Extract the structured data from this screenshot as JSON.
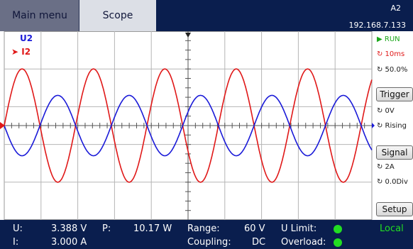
{
  "tabs": {
    "main_menu": "Main menu",
    "scope": "Scope"
  },
  "device": {
    "id": "A2",
    "ip": "192.168.7.133"
  },
  "channels": {
    "voltage": "U2",
    "current": "I2",
    "voltage_color": "#1a1ad8",
    "current_color": "#e01818"
  },
  "side": {
    "run": "▶ RUN",
    "timebase": "↻ 10ms",
    "position": "↻ 50.0%",
    "trigger_button": "Trigger",
    "trigger_level": "↻ 0V",
    "trigger_edge": "↻ Rising",
    "signal_button": "Signal",
    "signal_scale": "↻ 2A",
    "signal_offset": "↻ 0.0Div",
    "setup_button": "Setup"
  },
  "bottom": {
    "u_label": "U:",
    "u_value": "3.388 V",
    "p_label": "P:",
    "p_value": "10.17 W",
    "range_label": "Range:",
    "range_value": "60 V",
    "ulimit_label": "U Limit:",
    "mode": "Local",
    "i_label": "I:",
    "i_value": "3.000 A",
    "coupling_label": "Coupling:",
    "coupling_value": "DC",
    "overload_label": "Overload:",
    "led_color": "#22dd22"
  },
  "chart_data": {
    "type": "line",
    "grid": true,
    "x_divisions": 10,
    "y_divisions": 10,
    "series": [
      {
        "name": "I2",
        "color": "#e01818",
        "amplitude_div": 3.0,
        "cycles": 5.15,
        "phase_start": "rising at left edge"
      },
      {
        "name": "U2",
        "color": "#1a1ad8",
        "amplitude_div": 1.6,
        "cycles": 5.15,
        "phase_start": "falling at left edge"
      }
    ]
  }
}
